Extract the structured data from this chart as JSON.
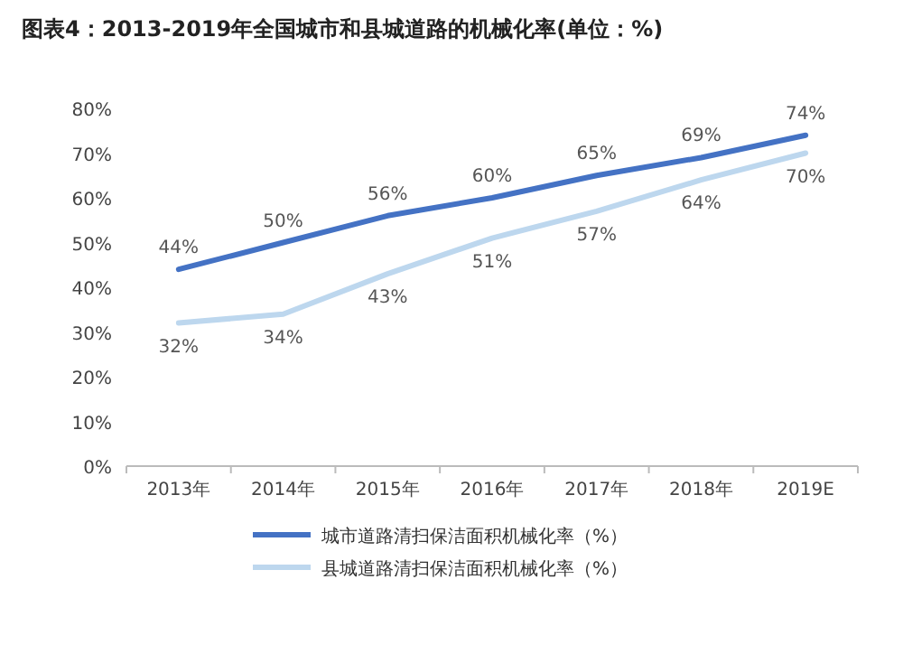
{
  "chart_data": {
    "type": "line",
    "title": "图表4：2013-2019年全国城市和县城道路的机械化率(单位：%)",
    "categories": [
      "2013年",
      "2014年",
      "2015年",
      "2016年",
      "2017年",
      "2018年",
      "2019E"
    ],
    "series": [
      {
        "name": "城市道路清扫保洁面积机械化率（%）",
        "color": "#4472c4",
        "values": [
          44,
          50,
          56,
          60,
          65,
          69,
          74
        ],
        "value_labels": [
          "44%",
          "50%",
          "56%",
          "60%",
          "65%",
          "69%",
          "74%"
        ]
      },
      {
        "name": "县城道路清扫保洁面积机械化率（%）",
        "color": "#bdd7ee",
        "values": [
          32,
          34,
          43,
          51,
          57,
          64,
          70
        ],
        "value_labels": [
          "32%",
          "34%",
          "43%",
          "51%",
          "57%",
          "64%",
          "70%"
        ]
      }
    ],
    "ylim": [
      0,
      80
    ],
    "yticks": [
      {
        "value": 0,
        "label": "0%"
      },
      {
        "value": 10,
        "label": "10%"
      },
      {
        "value": 20,
        "label": "20%"
      },
      {
        "value": 30,
        "label": "30%"
      },
      {
        "value": 40,
        "label": "40%"
      },
      {
        "value": 50,
        "label": "50%"
      },
      {
        "value": 60,
        "label": "60%"
      },
      {
        "value": 70,
        "label": "70%"
      },
      {
        "value": 80,
        "label": "80%"
      }
    ],
    "grid": false,
    "legend": "bottom",
    "marker": "none",
    "line_style": "solid"
  }
}
